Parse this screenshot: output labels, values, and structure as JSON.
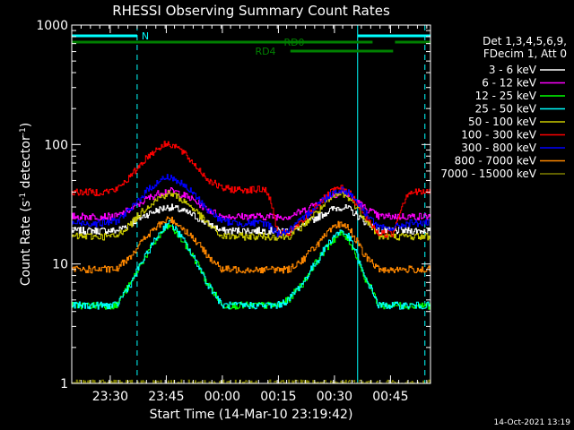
{
  "chart_data": {
    "type": "line",
    "title": "RHESSI Observing Summary Count Rates",
    "xlabel": "Start Time (14-Mar-10 23:19:42)",
    "ylabel": "Count Rate (s",
    "ylabel_sup1": "-1",
    "ylabel_mid": " detector",
    "ylabel_sup2": "-1",
    "ylabel_end": ")",
    "yscale": "log",
    "xlim": [
      0,
      96
    ],
    "ylim": [
      1,
      1000
    ],
    "x_units": "minutes after 23:19:42",
    "x_ticks": [
      {
        "value": 10.3,
        "label": "23:30"
      },
      {
        "value": 25.3,
        "label": "23:45"
      },
      {
        "value": 40.3,
        "label": "00:00"
      },
      {
        "value": 55.3,
        "label": "00:15"
      },
      {
        "value": 70.3,
        "label": "00:30"
      },
      {
        "value": 85.3,
        "label": "00:45"
      }
    ],
    "y_ticks": [
      {
        "value": 1,
        "label": "1"
      },
      {
        "value": 10,
        "label": "10"
      },
      {
        "value": 100,
        "label": "100"
      },
      {
        "value": 1000,
        "label": "1000"
      }
    ],
    "legend_header": [
      "Det 1,3,4,5,6,9,",
      "FDecim 1, Att 0"
    ],
    "timestamp": "14-Oct-2021 13:19",
    "x": [
      0,
      4,
      8,
      12,
      16,
      20,
      24,
      26,
      28,
      32,
      36,
      40,
      44,
      48,
      52,
      55,
      58,
      62,
      66,
      70,
      72,
      74,
      78,
      82,
      86,
      90,
      94,
      96
    ],
    "series": [
      {
        "name": "3 - 6 keV",
        "color": "#ffffff",
        "values": [
          19,
          19,
          19,
          19,
          22,
          26,
          29,
          30,
          29,
          26,
          22,
          19,
          19,
          19,
          19,
          19,
          19,
          21,
          25,
          29,
          30,
          29,
          23,
          19,
          19,
          19,
          19,
          19
        ]
      },
      {
        "name": "6 - 12 keV",
        "color": "#ff00ff",
        "values": [
          25,
          25,
          25,
          25,
          29,
          35,
          40,
          41,
          40,
          35,
          29,
          25,
          25,
          25,
          25,
          25,
          25,
          28,
          33,
          38,
          40,
          38,
          30,
          25,
          25,
          25,
          25,
          25
        ]
      },
      {
        "name": "12 - 25 keV",
        "color": "#00ff00",
        "values": [
          4.5,
          4.5,
          4.5,
          4.5,
          7,
          12,
          18,
          21,
          18,
          12,
          7,
          4.5,
          4.5,
          4.5,
          4.5,
          4.5,
          5,
          7,
          11,
          16,
          18,
          16,
          8,
          4.5,
          4.5,
          4.5,
          4.5,
          4.5
        ]
      },
      {
        "name": "25 - 50 keV",
        "color": "#00ffff",
        "values": [
          4.5,
          4.5,
          4.5,
          4.5,
          7,
          12,
          19,
          23,
          19,
          12,
          7,
          4.5,
          4.5,
          4.5,
          4.5,
          4.5,
          5,
          7,
          11,
          17,
          19,
          17,
          8,
          4.5,
          4.5,
          4.5,
          4.5,
          4.5
        ]
      },
      {
        "name": "50 - 100 keV",
        "color": "#cccc00",
        "values": [
          17,
          17,
          17,
          17,
          22,
          30,
          37,
          39,
          37,
          30,
          22,
          17,
          17,
          17,
          17,
          17,
          17,
          21,
          28,
          36,
          39,
          36,
          25,
          17,
          17,
          17,
          17,
          17
        ]
      },
      {
        "name": "100 - 300 keV",
        "color": "#ff0000",
        "values": [
          40,
          40,
          40,
          42,
          55,
          78,
          98,
          102,
          96,
          72,
          52,
          43,
          42,
          42,
          42,
          18,
          18,
          23,
          32,
          41,
          43,
          40,
          26,
          18,
          18,
          40,
          40,
          40
        ]
      },
      {
        "name": "300 - 800 keV",
        "color": "#0000ff",
        "values": [
          22,
          22,
          22,
          23,
          29,
          41,
          51,
          54,
          50,
          40,
          29,
          23,
          22,
          22,
          22,
          18,
          19,
          24,
          32,
          40,
          42,
          40,
          28,
          20,
          20,
          22,
          22,
          22
        ]
      },
      {
        "name": "800 - 7000 keV",
        "color": "#ff8800",
        "values": [
          9,
          9,
          9,
          9,
          12,
          17,
          22,
          24,
          22,
          17,
          12,
          9,
          9,
          9,
          9,
          9,
          9,
          11,
          15,
          20,
          22,
          20,
          12,
          9,
          9,
          9,
          9,
          9
        ]
      },
      {
        "name": "7000 - 15000 keV",
        "color": "#808000",
        "values": [
          1.0,
          1.0,
          1.0,
          1.0,
          1.0,
          1.0,
          1.0,
          1.0,
          1.0,
          1.0,
          1.0,
          1.0,
          1.0,
          1.0,
          1.0,
          1.0,
          1.0,
          1.0,
          1.0,
          1.0,
          1.0,
          1.0,
          1.0,
          1.0,
          1.0,
          1.0,
          1.0,
          1.0
        ]
      }
    ],
    "flags": [
      {
        "label": "N",
        "color": "#00ffff",
        "segments": [
          [
            0,
            17.5
          ],
          [
            76.5,
            96
          ]
        ]
      },
      {
        "label": "RD0",
        "color": "#008000",
        "segments": [
          [
            0,
            80.5
          ],
          [
            86.5,
            96
          ]
        ]
      },
      {
        "label": "RD4",
        "color": "#008000",
        "segments": [
          [
            58.5,
            86
          ]
        ]
      }
    ],
    "vlines": [
      {
        "x": 0,
        "color": "#00ffff",
        "style": "solid"
      },
      {
        "x": 17.5,
        "color": "#00ffff",
        "style": "dashed"
      },
      {
        "x": 76.5,
        "color": "#00ffff",
        "style": "solid"
      },
      {
        "x": 94.5,
        "color": "#00ffff",
        "style": "dashed"
      }
    ]
  }
}
